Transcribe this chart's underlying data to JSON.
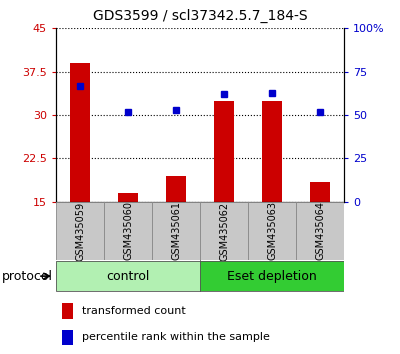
{
  "title": "GDS3599 / scl37342.5.7_184-S",
  "samples": [
    "GSM435059",
    "GSM435060",
    "GSM435061",
    "GSM435062",
    "GSM435063",
    "GSM435064"
  ],
  "transformed_count": [
    39.0,
    16.5,
    19.5,
    32.5,
    32.5,
    18.5
  ],
  "percentile_rank": [
    67,
    52,
    53,
    62,
    63,
    52
  ],
  "ylim_left": [
    15,
    45
  ],
  "ylim_right": [
    0,
    100
  ],
  "yticks_left": [
    15,
    22.5,
    30,
    37.5,
    45
  ],
  "yticks_right": [
    0,
    25,
    50,
    75,
    100
  ],
  "ytick_labels_left": [
    "15",
    "22.5",
    "30",
    "37.5",
    "45"
  ],
  "ytick_labels_right": [
    "0",
    "25",
    "50",
    "75",
    "100%"
  ],
  "bar_color": "#cc0000",
  "dot_color": "#0000cc",
  "bar_bottom": 15,
  "control_color": "#b2f0b2",
  "eset_color": "#33cc33",
  "label_box_color": "#c8c8c8",
  "legend_items": [
    "transformed count",
    "percentile rank within the sample"
  ],
  "title_fontsize": 10,
  "tick_label_fontsize": 8,
  "sample_label_fontsize": 7,
  "group_label_fontsize": 9,
  "legend_fontsize": 8,
  "protocol_fontsize": 9
}
